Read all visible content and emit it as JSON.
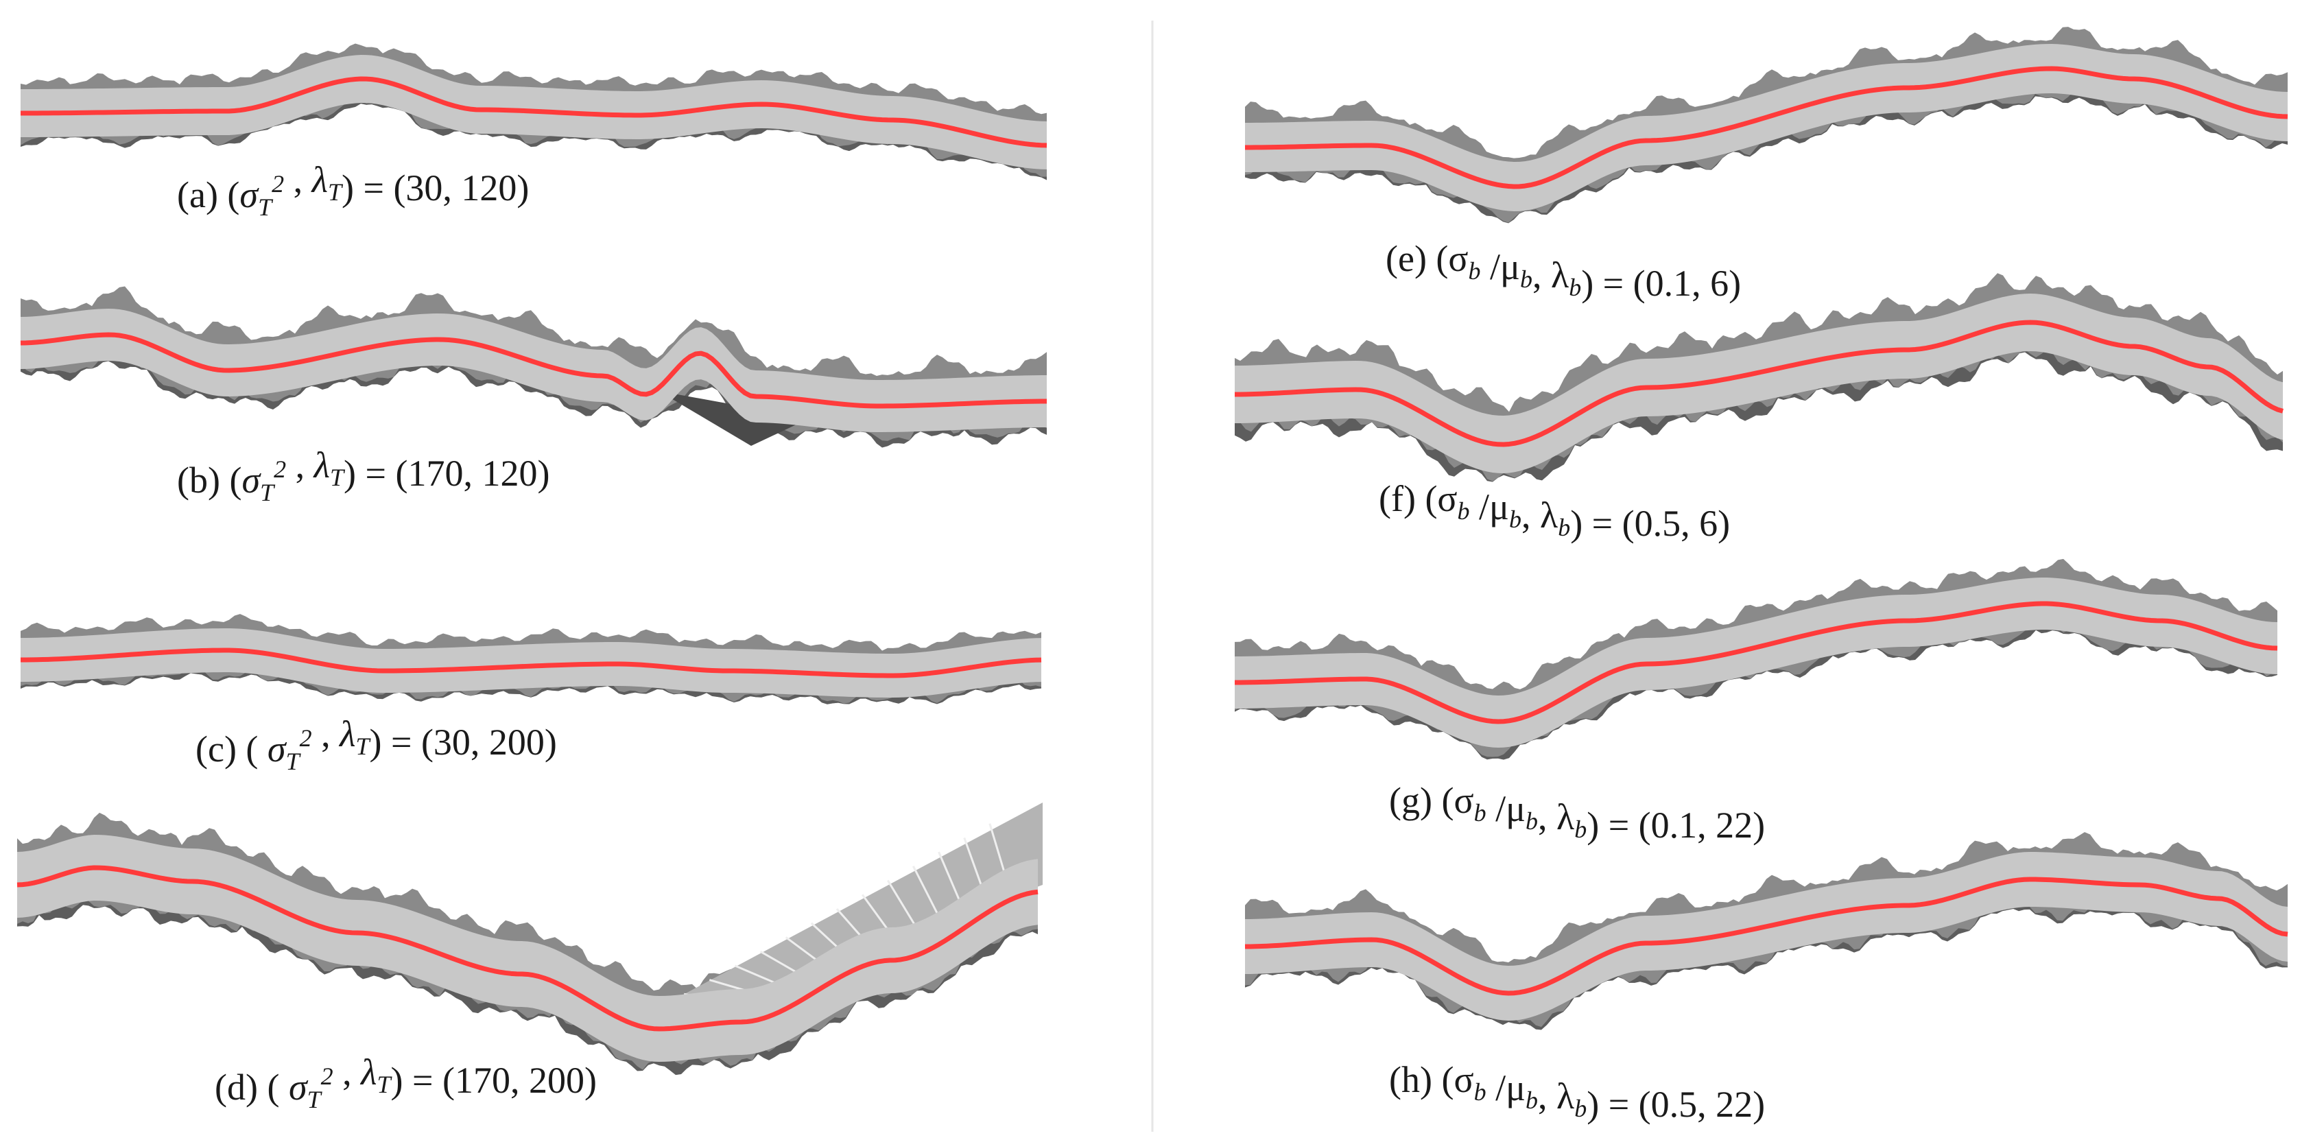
{
  "panels": [
    {
      "id": "a",
      "caption": [
        "(a) (",
        {
          "t": "σ",
          "i": true
        },
        {
          "t": "T",
          "i": true,
          "sub": true
        },
        {
          "t": "2",
          "i": true,
          "sup": true
        },
        " , ",
        {
          "t": "λ",
          "i": true
        },
        {
          "t": "T",
          "i": true,
          "sub": true
        },
        ") = (30, 120)"
      ]
    },
    {
      "id": "b",
      "caption": [
        "(b) (",
        {
          "t": "σ",
          "i": true
        },
        {
          "t": "T",
          "i": true,
          "sub": true
        },
        {
          "t": "2",
          "i": true,
          "sup": true
        },
        " , ",
        {
          "t": "λ",
          "i": true
        },
        {
          "t": "T",
          "i": true,
          "sub": true
        },
        ") = (170, 120)"
      ]
    },
    {
      "id": "c",
      "caption": [
        "(c) ( ",
        {
          "t": "σ",
          "i": true
        },
        {
          "t": "T",
          "i": true,
          "sub": true
        },
        {
          "t": "2",
          "i": true,
          "sup": true
        },
        " , ",
        {
          "t": "λ",
          "i": true
        },
        {
          "t": "T",
          "i": true,
          "sub": true
        },
        ") = (30, 200)"
      ]
    },
    {
      "id": "d",
      "caption": [
        "(d) ( ",
        {
          "t": "σ",
          "i": true
        },
        {
          "t": "T",
          "i": true,
          "sub": true
        },
        {
          "t": "2",
          "i": true,
          "sup": true
        },
        " , ",
        {
          "t": "λ",
          "i": true
        },
        {
          "t": "T",
          "i": true,
          "sub": true
        },
        ") = (170, 200)"
      ]
    },
    {
      "id": "e",
      "caption": [
        "(e) (σ",
        {
          "t": "b",
          "i": true,
          "sub": true
        },
        " /μ",
        {
          "t": "b",
          "i": true,
          "sub": true
        },
        ", λ",
        {
          "t": "b",
          "i": true,
          "sub": true
        },
        ") = (0.1, 6)"
      ]
    },
    {
      "id": "f",
      "caption": [
        "(f) (σ",
        {
          "t": "b",
          "i": true,
          "sub": true
        },
        " /μ",
        {
          "t": "b",
          "i": true,
          "sub": true
        },
        ", λ",
        {
          "t": "b",
          "i": true,
          "sub": true
        },
        ") = (0.5, 6)"
      ]
    },
    {
      "id": "g",
      "caption": [
        "(g) (σ",
        {
          "t": "b",
          "i": true,
          "sub": true
        },
        " /μ",
        {
          "t": "b",
          "i": true,
          "sub": true
        },
        ", λ",
        {
          "t": "b",
          "i": true,
          "sub": true
        },
        ") = (0.1, 22)"
      ]
    },
    {
      "id": "h",
      "caption": [
        "(h) (σ",
        {
          "t": "b",
          "i": true,
          "sub": true
        },
        " /μ",
        {
          "t": "b",
          "i": true,
          "sub": true
        },
        ", λ",
        {
          "t": "b",
          "i": true,
          "sub": true
        },
        ") = (0.5, 22)"
      ]
    }
  ],
  "colors": {
    "centerline": "#ff3b3b",
    "band": "#c8c8c8",
    "shadow": "#8a8a8a",
    "dark": "#4a4a4a",
    "divider": "#e6e6e6"
  }
}
